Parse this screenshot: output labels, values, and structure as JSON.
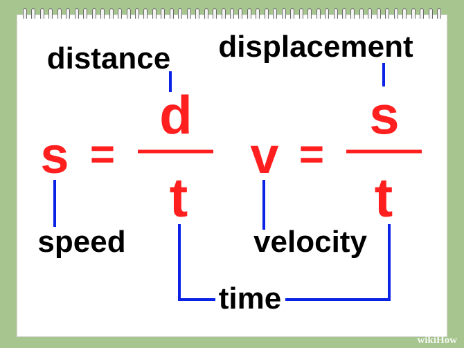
{
  "colors": {
    "background": "#a7c58f",
    "paper": "#ffffff",
    "formula": "#ff1f1f",
    "connector": "#0a22e6",
    "label": "#000000"
  },
  "formulas": [
    {
      "lhs": "s",
      "equals": "=",
      "numerator": "d",
      "denominator": "t"
    },
    {
      "lhs": "v",
      "equals": "=",
      "numerator": "s",
      "denominator": "t"
    }
  ],
  "labels": {
    "distance": "distance",
    "displacement": "displacement",
    "speed": "speed",
    "velocity": "velocity",
    "time": "time"
  },
  "watermark": {
    "brand_left": "wiki",
    "brand_right": "How"
  }
}
